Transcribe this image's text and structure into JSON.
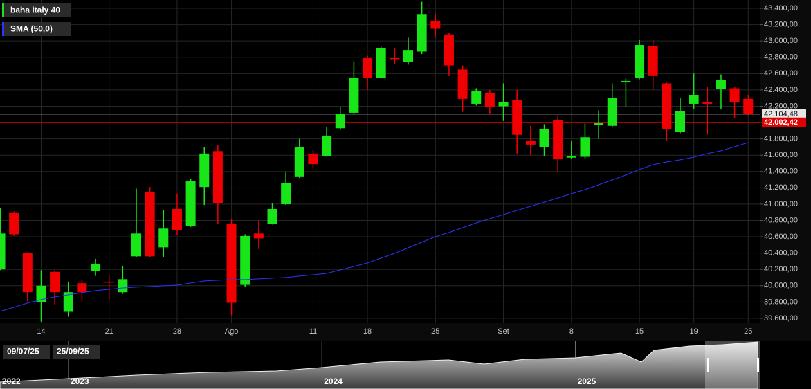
{
  "chart_data": [
    {
      "type": "candlestick",
      "categories": [
        null,
        null,
        null,
        "14",
        null,
        null,
        null,
        null,
        "21",
        null,
        null,
        null,
        null,
        "28",
        null,
        null,
        null,
        "Ago",
        null,
        null,
        null,
        null,
        null,
        "11",
        null,
        null,
        null,
        "18",
        null,
        null,
        null,
        null,
        "25",
        null,
        null,
        null,
        null,
        "Set",
        null,
        null,
        null,
        null,
        "8",
        null,
        null,
        null,
        null,
        "15",
        null,
        null,
        null,
        "19",
        null,
        null,
        null,
        "25"
      ],
      "series": [
        {
          "name": "baha italy 40",
          "type": "candlestick",
          "color": "#19e619",
          "up_color": "#19e619",
          "down_color": "#f00000",
          "open": [
            40200,
            40890,
            40400,
            39800,
            40170,
            39680,
            40030,
            40180,
            40050,
            39920,
            40360,
            41150,
            40470,
            40940,
            40730,
            41210,
            41650,
            40760,
            40010,
            40640,
            40760,
            40999,
            41340,
            41620,
            41590,
            41930,
            42120,
            42790,
            42550,
            42790,
            42740,
            42870,
            43240,
            43080,
            42650,
            42230,
            42360,
            42200,
            42280,
            41780,
            41700,
            42030,
            41570,
            41580,
            41970,
            41960,
            42500,
            42550,
            42940,
            42480,
            41890,
            42230,
            42250,
            42410,
            42420,
            42290
          ],
          "high": [
            40950,
            40910,
            40410,
            40190,
            40190,
            40040,
            40070,
            40330,
            40130,
            40240,
            41190,
            41210,
            40930,
            41130,
            41310,
            41700,
            41720,
            40810,
            40630,
            40800,
            41010,
            41400,
            41800,
            41670,
            41950,
            42190,
            42750,
            42820,
            42930,
            42910,
            43040,
            43480,
            43330,
            43100,
            42700,
            42420,
            42400,
            42480,
            42400,
            41960,
            41980,
            42090,
            41780,
            41990,
            42150,
            42480,
            42540,
            43010,
            43010,
            42490,
            42300,
            42600,
            42440,
            42590,
            42440,
            42340
          ],
          "low": [
            40190,
            40610,
            39810,
            39560,
            39770,
            39620,
            39810,
            40120,
            39830,
            39900,
            40350,
            40350,
            40350,
            40620,
            40720,
            40990,
            40760,
            39640,
            39990,
            40450,
            40750,
            40990,
            41320,
            41450,
            41580,
            41910,
            42100,
            42400,
            42540,
            42720,
            42710,
            42840,
            43040,
            42570,
            42130,
            42210,
            42100,
            42020,
            41620,
            41600,
            41590,
            41400,
            41550,
            41560,
            41800,
            41940,
            42190,
            42530,
            42400,
            41770,
            41870,
            42170,
            41850,
            42160,
            42060,
            42090
          ],
          "close": [
            40640,
            40630,
            39920,
            40000,
            39920,
            39920,
            39920,
            40270,
            40040,
            40080,
            40640,
            40360,
            40700,
            40680,
            41280,
            41620,
            41010,
            39790,
            40610,
            40580,
            40940,
            41260,
            41700,
            41490,
            41840,
            42110,
            42550,
            42550,
            42910,
            42780,
            42890,
            43330,
            43150,
            42700,
            42290,
            42390,
            42190,
            42250,
            41850,
            41730,
            41920,
            41550,
            41590,
            41820,
            42000,
            42300,
            42510,
            42950,
            42570,
            41920,
            42140,
            42340,
            42230,
            42520,
            42250,
            42104.48
          ]
        },
        {
          "name": "SMA (50,0)",
          "type": "line",
          "color": "#2a35ff",
          "values": [
            39685,
            39736,
            39787,
            39830,
            39863,
            39889,
            39914,
            39940,
            39956,
            39973,
            39982,
            39990,
            39999,
            40007,
            40033,
            40058,
            40067,
            40075,
            40075,
            40084,
            40092,
            40101,
            40118,
            40134,
            40151,
            40194,
            40236,
            40279,
            40338,
            40397,
            40465,
            40533,
            40601,
            40652,
            40711,
            40770,
            40821,
            40872,
            40923,
            40974,
            41025,
            41076,
            41127,
            41177,
            41237,
            41296,
            41356,
            41424,
            41483,
            41517,
            41543,
            41576,
            41619,
            41653,
            41704,
            41755
          ]
        }
      ],
      "ylim": [
        39540,
        43502
      ],
      "yticks": [
        {
          "value": 39600,
          "label": "39.600,00"
        },
        {
          "value": 39800,
          "label": "39.800,00"
        },
        {
          "value": 40000,
          "label": "40.000,00"
        },
        {
          "value": 40200,
          "label": "40.200,00"
        },
        {
          "value": 40400,
          "label": "40.400,00"
        },
        {
          "value": 40600,
          "label": "40.600,00"
        },
        {
          "value": 40800,
          "label": "40.800,00"
        },
        {
          "value": 41000,
          "label": "41.000,00"
        },
        {
          "value": 41200,
          "label": "41.200,00"
        },
        {
          "value": 41400,
          "label": "41.400,00"
        },
        {
          "value": 41600,
          "label": "41.600,00"
        },
        {
          "value": 41800,
          "label": "41.800,00"
        },
        {
          "value": 42000,
          "label": "42.000,00"
        },
        {
          "value": 42200,
          "label": "42.200,00"
        },
        {
          "value": 42400,
          "label": "42.400,00"
        },
        {
          "value": 42600,
          "label": "42.600,00"
        },
        {
          "value": 42800,
          "label": "42.800,00"
        },
        {
          "value": 43000,
          "label": "43.000,00"
        },
        {
          "value": 43200,
          "label": "43.200,00"
        },
        {
          "value": 43400,
          "label": "43.400,00"
        }
      ],
      "grid": true,
      "legend": "top-left",
      "price_lines": [
        {
          "value": 42104.48,
          "label": "42.104,48",
          "color": "#e6e6e6"
        },
        {
          "value": 42002.42,
          "label": "42.002,42",
          "color": "#e00000"
        }
      ]
    },
    {
      "type": "area",
      "x": [
        2022.73,
        2023.0,
        2023.27,
        2023.55,
        2023.82,
        2024.0,
        2024.23,
        2024.5,
        2024.64,
        2024.8,
        2025.0,
        2025.18,
        2025.26,
        2025.31,
        2025.45,
        2025.58,
        2025.72
      ],
      "values": [
        15000,
        17500,
        20000,
        22000,
        23000,
        25500,
        29500,
        31000,
        28000,
        31500,
        32500,
        36000,
        29500,
        38000,
        41000,
        42000,
        44000
      ],
      "xlim": [
        2022.73,
        2025.73
      ],
      "ylim": [
        10000,
        45000
      ],
      "xticks": [
        2022,
        2023,
        2024,
        2025
      ],
      "range_labels": [
        "09/07/25",
        "25/09/25"
      ]
    }
  ]
}
